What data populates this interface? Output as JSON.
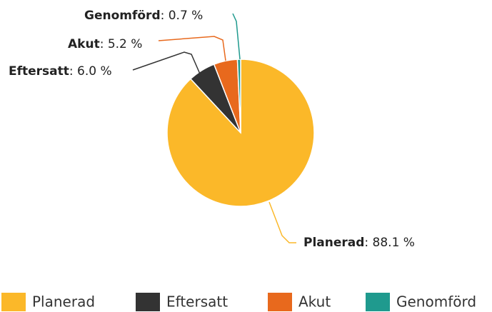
{
  "chart_data": {
    "type": "pie",
    "categories": [
      "Planerad",
      "Eftersatt",
      "Akut",
      "Genomförd"
    ],
    "values": [
      88.1,
      6.0,
      5.2,
      0.7
    ],
    "value_labels": [
      ": 88.1 %",
      ": 6.0 %",
      ": 5.2 %",
      ": 0.7 %"
    ],
    "colors": [
      "#fbb829",
      "#333333",
      "#e8691d",
      "#1f9a8e"
    ],
    "legend": "bottom"
  }
}
